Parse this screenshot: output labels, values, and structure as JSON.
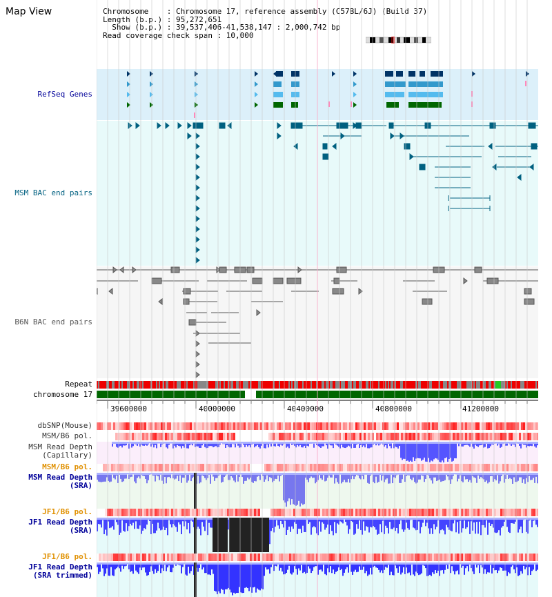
{
  "title": "Map View",
  "info": {
    "lines": [
      "Chromosome    : Chromosome 17, reference assembly (C57BL/6J) (Build 37)",
      "Length (b.p.) : 95,272,651",
      "  Show (b.p.) : 39,537,406-41,538,147 : 2,000,742 bp",
      "Read coverage check span : 10,000"
    ]
  },
  "tracks": {
    "refseq": {
      "label": "RefSeq Genes",
      "color": "#000099"
    },
    "msm_bac": {
      "label": "MSM BAC end pairs",
      "color": "#006080"
    },
    "b6n_bac": {
      "label": "B6N BAC end pairs",
      "color": "#555555"
    },
    "repeat": {
      "label": "Repeat"
    },
    "chromosome": {
      "label": "chromosome 17"
    },
    "dbsnp": {
      "label": "dbSNP(Mouse)"
    },
    "msm_b6_pol_1": {
      "label": "MSM/B6 pol."
    },
    "msm_depth_cap": {
      "label1": "MSM Read Depth",
      "label2": "(Capillary)"
    },
    "msm_b6_pol_2": {
      "label": "MSM/B6 pol."
    },
    "msm_depth_sra": {
      "label1": "MSM Read Depth",
      "label2": "(SRA)"
    },
    "jf1_b6_pol_1": {
      "label": "JF1/B6 pol."
    },
    "jf1_depth_sra": {
      "label1": "JF1 Read Depth",
      "label2": "(SRA)"
    },
    "jf1_b6_pol_2": {
      "label": "JF1/B6 pol."
    },
    "jf1_depth_trim": {
      "label1": "JF1 Read Depth",
      "label2": "(SRA trimmed)"
    }
  },
  "ruler": {
    "ticks": [
      "39600000",
      "40000000",
      "40400000",
      "40800000",
      "41200000"
    ]
  },
  "colors": {
    "refseq_bg": "#dcf0fa",
    "msm_bac_bg": "#e8fafa",
    "b6n_bg": "#f8f8f8",
    "repeat_red": "#ee0000",
    "chromosome_green": "#006600",
    "label_blue": "#000099",
    "label_orange": "#e09000",
    "depth_blue": "#3333ff"
  }
}
